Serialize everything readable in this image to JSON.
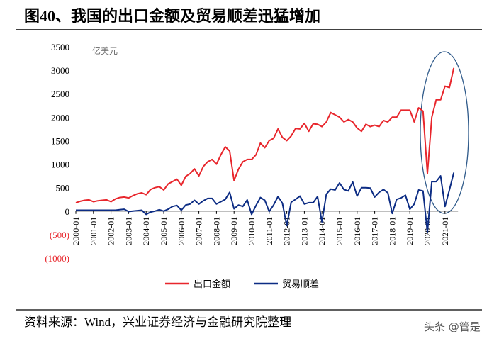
{
  "chart_data": {
    "type": "line",
    "title": "图40、我国的出口金额及贸易顺差迅猛增加",
    "unit_label": "亿美元",
    "source": "资料来源：Wind，兴业证券经济与金融研究院整理",
    "watermark": "头条 @管是",
    "x": [
      "2000-01",
      null,
      null,
      null,
      "2001-01",
      null,
      null,
      null,
      "2002-01",
      null,
      null,
      null,
      "2003-01",
      null,
      null,
      null,
      "2004-01",
      null,
      null,
      null,
      "2005-01",
      null,
      null,
      null,
      "2006-01",
      null,
      null,
      null,
      "2007-01",
      null,
      null,
      null,
      "2008-01",
      null,
      null,
      null,
      "2009-01",
      null,
      null,
      null,
      "2010-01",
      null,
      null,
      null,
      "2011-01",
      null,
      null,
      null,
      "2012-01",
      null,
      null,
      null,
      "2013-01",
      null,
      null,
      null,
      "2014-01",
      null,
      null,
      null,
      "2015-01",
      null,
      null,
      null,
      "2016-01",
      null,
      null,
      null,
      "2017-01",
      null,
      null,
      null,
      "2018-01",
      null,
      null,
      null,
      "2019-01",
      null,
      null,
      null,
      "2020-01",
      null,
      null,
      null,
      "2021-01",
      null,
      null
    ],
    "series": [
      {
        "name": "出口金额",
        "color": "#e8262c",
        "values": [
          180,
          210,
          230,
          240,
          200,
          220,
          230,
          240,
          200,
          260,
          290,
          300,
          280,
          330,
          370,
          390,
          350,
          460,
          500,
          520,
          450,
          580,
          630,
          680,
          550,
          740,
          800,
          900,
          750,
          950,
          1050,
          1100,
          1000,
          1200,
          1370,
          1280,
          650,
          890,
          1050,
          1100,
          1100,
          1200,
          1450,
          1350,
          1500,
          1550,
          1750,
          1570,
          1500,
          1600,
          1760,
          1750,
          1870,
          1700,
          1860,
          1850,
          1800,
          1900,
          2100,
          2050,
          2000,
          1900,
          1950,
          1900,
          1770,
          1700,
          1850,
          1800,
          1830,
          1800,
          1930,
          1900,
          2000,
          2000,
          2150,
          2150,
          2150,
          1900,
          2200,
          2130,
          800,
          2000,
          2370,
          2370,
          2660,
          2630,
          3050
        ]
      },
      {
        "name": "贸易顺差",
        "color": "#0c2c84",
        "values": [
          20,
          20,
          20,
          20,
          20,
          20,
          20,
          20,
          20,
          20,
          30,
          40,
          -10,
          0,
          10,
          20,
          -70,
          -20,
          0,
          30,
          0,
          40,
          100,
          120,
          20,
          130,
          150,
          230,
          150,
          220,
          270,
          270,
          150,
          200,
          250,
          400,
          50,
          130,
          100,
          240,
          -70,
          120,
          290,
          230,
          -10,
          130,
          310,
          170,
          -310,
          190,
          250,
          320,
          150,
          180,
          180,
          310,
          -230,
          360,
          470,
          450,
          600,
          460,
          430,
          620,
          320,
          500,
          500,
          490,
          300,
          400,
          460,
          390,
          -50,
          250,
          280,
          340,
          40,
          150,
          450,
          430,
          -450,
          630,
          630,
          750,
          100,
          450,
          820
        ]
      }
    ],
    "ylim": [
      -1000,
      3500
    ],
    "yticks": [
      {
        "value": -1000,
        "label": "(1000)"
      },
      {
        "value": -500,
        "label": "(500)"
      },
      0,
      500,
      1000,
      1500,
      2000,
      2500,
      3000,
      3500
    ],
    "negative_tick_color": "#e8262c",
    "legend": "bottom"
  }
}
